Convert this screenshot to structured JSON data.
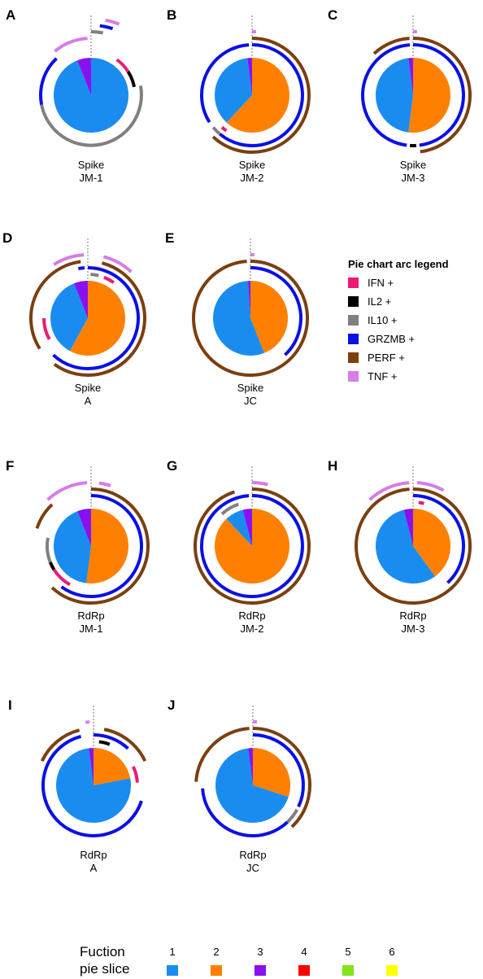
{
  "colors": {
    "IFN": "#ec1a75",
    "IL2": "#000000",
    "IL10": "#808080",
    "GRZMB": "#0a10e6",
    "PERF": "#7b3f10",
    "TNF": "#d47ee8",
    "f1": "#1a8cf0",
    "f2": "#ff8000",
    "f3": "#8a10f0",
    "f4": "#ff0000",
    "f5": "#80e61a",
    "f6": "#ffff00"
  },
  "arc_legend": {
    "title": "Pie chart arc legend",
    "items": [
      {
        "key": "IFN",
        "label": "IFN +"
      },
      {
        "key": "IL2",
        "label": "IL2 +"
      },
      {
        "key": "IL10",
        "label": "IL10 +"
      },
      {
        "key": "GRZMB",
        "label": "GRZMB +"
      },
      {
        "key": "PERF",
        "label": "PERF +"
      },
      {
        "key": "TNF",
        "label": "TNF +"
      }
    ]
  },
  "function_legend": {
    "title_line1": "Fuction",
    "title_line2": "pie slice",
    "items": [
      {
        "num": "1",
        "key": "f1"
      },
      {
        "num": "2",
        "key": "f2"
      },
      {
        "num": "3",
        "key": "f3"
      },
      {
        "num": "4",
        "key": "f4"
      },
      {
        "num": "5",
        "key": "f5"
      },
      {
        "num": "6",
        "key": "f6"
      }
    ]
  },
  "chart_data": [
    {
      "type": "pie",
      "panel": "A",
      "caption1": "Spike",
      "caption2": "JM-1",
      "slices": [
        {
          "function": 1,
          "value": 0.94
        },
        {
          "function": 3,
          "value": 0.06
        }
      ],
      "arcs": [
        {
          "marker": "IFN",
          "ring": 1,
          "start": 0.1,
          "end": 0.16
        },
        {
          "marker": "IL2",
          "ring": 1,
          "start": 0.16,
          "end": 0.22
        },
        {
          "marker": "IL10",
          "ring": 2,
          "start": 0.22,
          "end": 0.72
        },
        {
          "marker": "GRZMB",
          "ring": 2,
          "start": 0.72,
          "end": 0.88
        },
        {
          "marker": "TNF",
          "ring": 3,
          "start": 0.89,
          "end": 0.99
        },
        {
          "marker": "IL10",
          "ring": 4,
          "start": 0.0,
          "end": 0.03
        },
        {
          "marker": "GRZMB",
          "ring": 5,
          "start": 0.02,
          "end": 0.05
        },
        {
          "marker": "TNF",
          "ring": 6,
          "start": 0.03,
          "end": 0.06
        }
      ]
    },
    {
      "type": "pie",
      "panel": "B",
      "caption1": "Spike",
      "caption2": "JM-2",
      "slices": [
        {
          "function": 2,
          "value": 0.62
        },
        {
          "function": 1,
          "value": 0.36
        },
        {
          "function": 3,
          "value": 0.02
        }
      ],
      "arcs": [
        {
          "marker": "GRZMB",
          "ring": 2,
          "start": 0.0,
          "end": 0.61
        },
        {
          "marker": "IL10",
          "ring": 2,
          "start": 0.61,
          "end": 0.64
        },
        {
          "marker": "GRZMB",
          "ring": 2,
          "start": 0.66,
          "end": 0.99
        },
        {
          "marker": "IFN",
          "ring": 1,
          "start": 0.6,
          "end": 0.62
        },
        {
          "marker": "PERF",
          "ring": 3,
          "start": 0.0,
          "end": 0.62
        },
        {
          "marker": "TNF",
          "ring": 4,
          "start": 0.0,
          "end": 0.01
        }
      ]
    },
    {
      "type": "pie",
      "panel": "C",
      "caption1": "Spike",
      "caption2": "JM-3",
      "slices": [
        {
          "function": 2,
          "value": 0.52
        },
        {
          "function": 1,
          "value": 0.46
        },
        {
          "function": 3,
          "value": 0.02
        }
      ],
      "arcs": [
        {
          "marker": "GRZMB",
          "ring": 2,
          "start": 0.0,
          "end": 0.48
        },
        {
          "marker": "IL2",
          "ring": 2,
          "start": 0.49,
          "end": 0.51
        },
        {
          "marker": "GRZMB",
          "ring": 2,
          "start": 0.52,
          "end": 0.99
        },
        {
          "marker": "PERF",
          "ring": 3,
          "start": 0.0,
          "end": 0.48
        },
        {
          "marker": "PERF",
          "ring": 3,
          "start": 0.88,
          "end": 0.99
        },
        {
          "marker": "TNF",
          "ring": 4,
          "start": 0.0,
          "end": 0.01
        }
      ]
    },
    {
      "type": "pie",
      "panel": "D",
      "caption1": "Spike",
      "caption2": "A",
      "slices": [
        {
          "function": 2,
          "value": 0.58
        },
        {
          "function": 1,
          "value": 0.36
        },
        {
          "function": 3,
          "value": 0.06
        }
      ],
      "arcs": [
        {
          "marker": "IFN",
          "ring": 1,
          "start": 0.06,
          "end": 0.1
        },
        {
          "marker": "IFN",
          "ring": 1,
          "start": 0.67,
          "end": 0.75
        },
        {
          "marker": "GRZMB",
          "ring": 2,
          "start": 0.0,
          "end": 0.62
        },
        {
          "marker": "GRZMB",
          "ring": 2,
          "start": 0.97,
          "end": 0.99
        },
        {
          "marker": "PERF",
          "ring": 3,
          "start": 0.04,
          "end": 0.6
        },
        {
          "marker": "PERF",
          "ring": 3,
          "start": 0.66,
          "end": 0.98
        },
        {
          "marker": "TNF",
          "ring": 4,
          "start": 0.04,
          "end": 0.12
        },
        {
          "marker": "TNF",
          "ring": 4,
          "start": 0.91,
          "end": 0.99
        },
        {
          "marker": "IL10",
          "ring": 1,
          "start": 0.01,
          "end": 0.04
        }
      ]
    },
    {
      "type": "pie",
      "panel": "E",
      "caption1": "Spike",
      "caption2": "JC",
      "slices": [
        {
          "function": 2,
          "value": 0.44
        },
        {
          "function": 1,
          "value": 0.55
        },
        {
          "function": 3,
          "value": 0.01
        }
      ],
      "arcs": [
        {
          "marker": "GRZMB",
          "ring": 2,
          "start": 0.0,
          "end": 0.38
        },
        {
          "marker": "PERF",
          "ring": 3,
          "start": 0.0,
          "end": 0.99
        },
        {
          "marker": "TNF",
          "ring": 4,
          "start": 0.0,
          "end": 0.01
        }
      ]
    },
    {
      "type": "pie",
      "panel": "F",
      "caption1": "RdRp",
      "caption2": "JM-1",
      "slices": [
        {
          "function": 2,
          "value": 0.52
        },
        {
          "function": 1,
          "value": 0.42
        },
        {
          "function": 3,
          "value": 0.06
        }
      ],
      "arcs": [
        {
          "marker": "IFN",
          "ring": 1,
          "start": 0.58,
          "end": 0.66
        },
        {
          "marker": "IL2",
          "ring": 1,
          "start": 0.66,
          "end": 0.69
        },
        {
          "marker": "IL10",
          "ring": 1,
          "start": 0.69,
          "end": 0.78
        },
        {
          "marker": "GRZMB",
          "ring": 2,
          "start": 0.0,
          "end": 0.6
        },
        {
          "marker": "PERF",
          "ring": 3,
          "start": 0.0,
          "end": 0.62
        },
        {
          "marker": "PERF",
          "ring": 3,
          "start": 0.8,
          "end": 0.88
        },
        {
          "marker": "TNF",
          "ring": 4,
          "start": 0.88,
          "end": 0.99
        },
        {
          "marker": "TNF",
          "ring": 4,
          "start": 0.02,
          "end": 0.05
        }
      ]
    },
    {
      "type": "pie",
      "panel": "G",
      "caption1": "RdRp",
      "caption2": "JM-2",
      "slices": [
        {
          "function": 2,
          "value": 0.88
        },
        {
          "function": 1,
          "value": 0.08
        },
        {
          "function": 3,
          "value": 0.04
        }
      ],
      "arcs": [
        {
          "marker": "GRZMB",
          "ring": 2,
          "start": 0.0,
          "end": 0.99
        },
        {
          "marker": "IL10",
          "ring": 1,
          "start": 0.88,
          "end": 0.95
        },
        {
          "marker": "PERF",
          "ring": 3,
          "start": 0.0,
          "end": 0.95
        },
        {
          "marker": "TNF",
          "ring": 4,
          "start": 0.0,
          "end": 0.04
        }
      ]
    },
    {
      "type": "pie",
      "panel": "H",
      "caption1": "RdRp",
      "caption2": "JM-3",
      "slices": [
        {
          "function": 2,
          "value": 0.4
        },
        {
          "function": 1,
          "value": 0.56
        },
        {
          "function": 3,
          "value": 0.04
        }
      ],
      "arcs": [
        {
          "marker": "GRZMB",
          "ring": 2,
          "start": 0.0,
          "end": 0.38
        },
        {
          "marker": "PERF",
          "ring": 3,
          "start": 0.0,
          "end": 0.99
        },
        {
          "marker": "TNF",
          "ring": 4,
          "start": 0.88,
          "end": 0.99
        },
        {
          "marker": "TNF",
          "ring": 4,
          "start": 0.01,
          "end": 0.08
        },
        {
          "marker": "IFN",
          "ring": 1,
          "start": 0.02,
          "end": 0.04
        }
      ]
    },
    {
      "type": "pie",
      "panel": "I",
      "caption1": "RdRp",
      "caption2": "A",
      "slices": [
        {
          "function": 2,
          "value": 0.22
        },
        {
          "function": 1,
          "value": 0.76
        },
        {
          "function": 3,
          "value": 0.02
        }
      ],
      "arcs": [
        {
          "marker": "IFN",
          "ring": 1,
          "start": 0.18,
          "end": 0.24
        },
        {
          "marker": "IL2",
          "ring": 1,
          "start": 0.02,
          "end": 0.06
        },
        {
          "marker": "GRZMB",
          "ring": 2,
          "start": 0.0,
          "end": 0.12
        },
        {
          "marker": "GRZMB",
          "ring": 2,
          "start": 0.3,
          "end": 0.96
        },
        {
          "marker": "PERF",
          "ring": 3,
          "start": 0.03,
          "end": 0.18
        },
        {
          "marker": "PERF",
          "ring": 3,
          "start": 0.82,
          "end": 0.96
        },
        {
          "marker": "TNF",
          "ring": 4,
          "start": 0.98,
          "end": 0.99
        }
      ]
    },
    {
      "type": "pie",
      "panel": "J",
      "caption1": "RdRp",
      "caption2": "JC",
      "slices": [
        {
          "function": 2,
          "value": 0.3
        },
        {
          "function": 1,
          "value": 0.68
        },
        {
          "function": 3,
          "value": 0.02
        }
      ],
      "arcs": [
        {
          "marker": "GRZMB",
          "ring": 2,
          "start": 0.0,
          "end": 0.32
        },
        {
          "marker": "IL10",
          "ring": 2,
          "start": 0.33,
          "end": 0.38
        },
        {
          "marker": "GRZMB",
          "ring": 2,
          "start": 0.38,
          "end": 0.74
        },
        {
          "marker": "PERF",
          "ring": 3,
          "start": 0.0,
          "end": 0.38
        },
        {
          "marker": "PERF",
          "ring": 3,
          "start": 0.76,
          "end": 0.99
        },
        {
          "marker": "TNF",
          "ring": 4,
          "start": 0.0,
          "end": 0.01
        }
      ]
    }
  ]
}
